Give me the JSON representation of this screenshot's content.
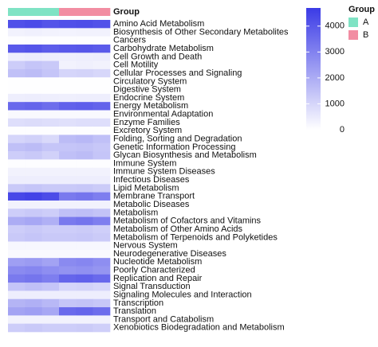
{
  "chart_data": {
    "type": "heatmap",
    "annotation_label": "Group",
    "legend_title": "Group",
    "groups": [
      {
        "name": "A",
        "color": "#7fe3c4"
      },
      {
        "name": "B",
        "color": "#f28da2"
      }
    ],
    "column_groups": [
      "A",
      "A",
      "A",
      "B",
      "B",
      "B"
    ],
    "columns": [
      null,
      null,
      null,
      null,
      null,
      null
    ],
    "rows": [
      "Amino Acid Metabolism",
      "Biosynthesis of Other Secondary Metabolites",
      "Cancers",
      "Carbohydrate Metabolism",
      "Cell Growth and Death",
      "Cell Motility",
      "Cellular Processes and Signaling",
      "Circulatory System",
      "Digestive System",
      "Endocrine System",
      "Energy Metabolism",
      "Environmental Adaptation",
      "Enzyme Families",
      "Excretory System",
      "Folding, Sorting and Degradation",
      "Genetic Information Processing",
      "Glycan Biosynthesis and Metabolism",
      "Immune System",
      "Immune System Diseases",
      "Infectious Diseases",
      "Lipid Metabolism",
      "Membrane Transport",
      "Metabolic Diseases",
      "Metabolism",
      "Metabolism of Cofactors and Vitamins",
      "Metabolism of Other Amino Acids",
      "Metabolism of Terpenoids and Polyketides",
      "Nervous System",
      "Neurodegenerative Diseases",
      "Nucleotide Metabolism",
      "Poorly Characterized",
      "Replication and Repair",
      "Signal Transduction",
      "Signaling Molecules and Interaction",
      "Transcription",
      "Translation",
      "Transport and Catabolism",
      "Xenobiotics Biodegradation and Metabolism"
    ],
    "values": [
      [
        4200,
        4300,
        4100,
        4200,
        4250,
        4150
      ],
      [
        300,
        350,
        300,
        280,
        300,
        320
      ],
      [
        50,
        60,
        50,
        40,
        50,
        50
      ],
      [
        4000,
        4100,
        3900,
        4000,
        4050,
        3950
      ],
      [
        400,
        450,
        400,
        380,
        400,
        420
      ],
      [
        1200,
        1400,
        1300,
        300,
        350,
        300
      ],
      [
        1500,
        1600,
        1400,
        1000,
        1050,
        950
      ],
      [
        20,
        20,
        20,
        20,
        20,
        20
      ],
      [
        30,
        30,
        30,
        30,
        30,
        30
      ],
      [
        400,
        420,
        400,
        380,
        400,
        400
      ],
      [
        3600,
        3700,
        3500,
        3800,
        3850,
        3750
      ],
      [
        150,
        150,
        150,
        150,
        150,
        150
      ],
      [
        800,
        850,
        800,
        750,
        800,
        800
      ],
      [
        50,
        50,
        50,
        50,
        50,
        50
      ],
      [
        1000,
        1100,
        900,
        1600,
        1700,
        1500
      ],
      [
        1500,
        1600,
        1400,
        1400,
        1450,
        1350
      ],
      [
        1200,
        1300,
        1100,
        1500,
        1600,
        1400
      ],
      [
        50,
        50,
        50,
        50,
        50,
        50
      ],
      [
        300,
        300,
        300,
        300,
        300,
        300
      ],
      [
        400,
        400,
        400,
        400,
        400,
        400
      ],
      [
        1300,
        1400,
        1300,
        1300,
        1350,
        1250
      ],
      [
        4400,
        4500,
        4300,
        3200,
        3300,
        3100
      ],
      [
        300,
        300,
        300,
        300,
        300,
        300
      ],
      [
        1200,
        1300,
        1200,
        1500,
        1550,
        1450
      ],
      [
        2000,
        2100,
        1900,
        3200,
        3300,
        3100
      ],
      [
        1200,
        1300,
        1200,
        1200,
        1250,
        1150
      ],
      [
        1300,
        1400,
        1300,
        1300,
        1350,
        1250
      ],
      [
        200,
        200,
        200,
        200,
        200,
        200
      ],
      [
        150,
        150,
        150,
        150,
        150,
        150
      ],
      [
        2300,
        2400,
        2200,
        2800,
        2900,
        2700
      ],
      [
        2800,
        2900,
        2700,
        2600,
        2650,
        2550
      ],
      [
        3200,
        3300,
        3100,
        3700,
        3800,
        3600
      ],
      [
        1400,
        1500,
        1400,
        1000,
        1050,
        950
      ],
      [
        400,
        400,
        400,
        400,
        400,
        400
      ],
      [
        1800,
        1900,
        1700,
        1400,
        1450,
        1350
      ],
      [
        2200,
        2300,
        2100,
        3600,
        3700,
        3500
      ],
      [
        300,
        300,
        300,
        300,
        300,
        300
      ],
      [
        1200,
        1300,
        1200,
        1200,
        1250,
        1150
      ]
    ],
    "color_low": "#ffffff",
    "color_high": "#3b3be6",
    "clim": [
      0,
      4700
    ],
    "cticks": [
      0,
      1000,
      2000,
      3000,
      4000
    ]
  }
}
